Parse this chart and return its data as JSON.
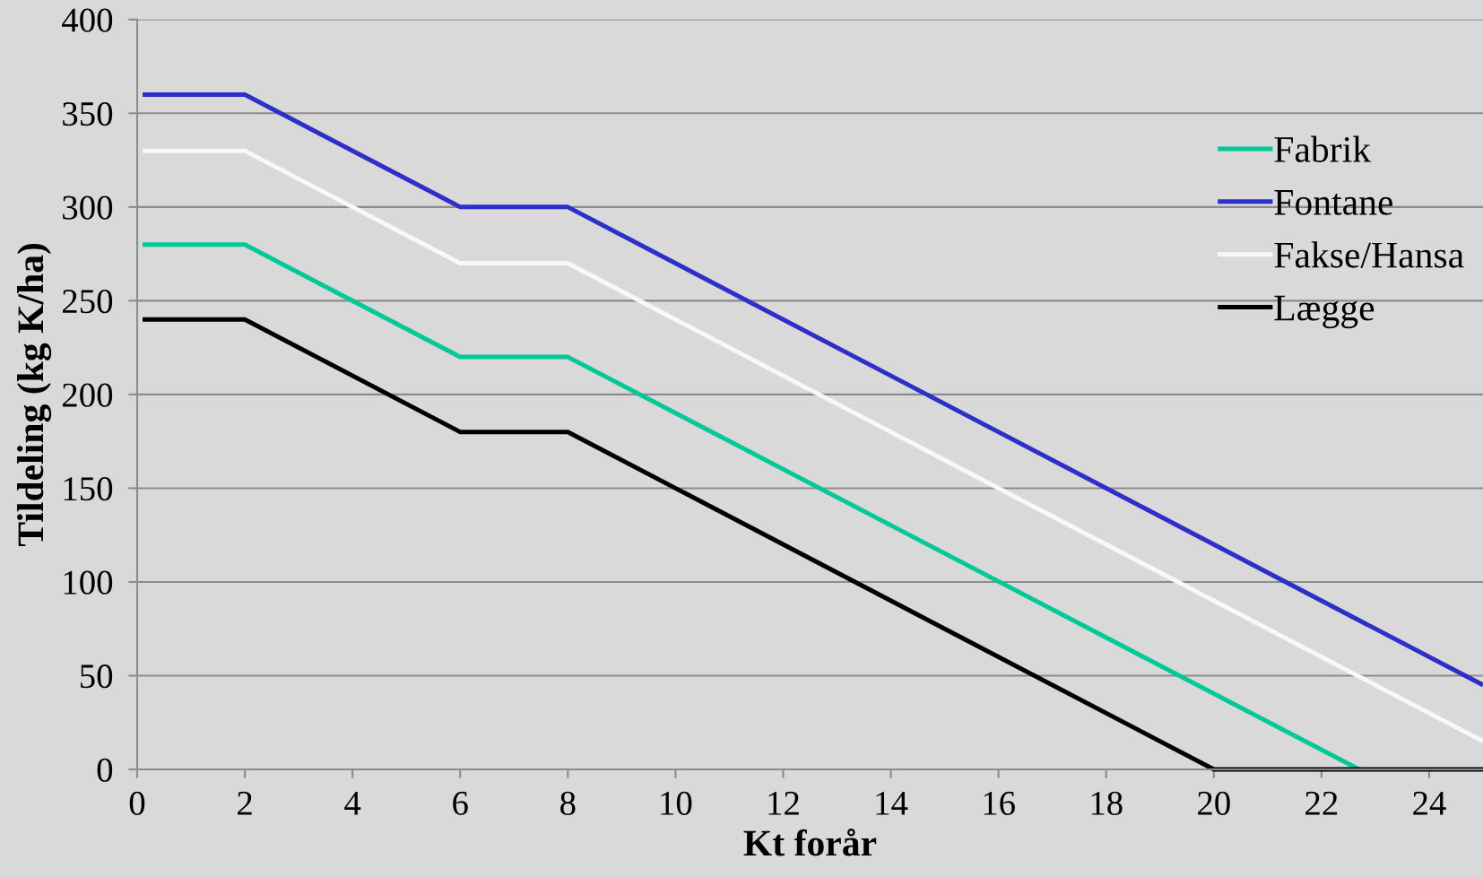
{
  "chart_data": {
    "type": "line",
    "xlabel": "Kt forår",
    "ylabel": "Tildeling (kg K/ha)",
    "xlim": [
      0,
      25
    ],
    "xticks": [
      0,
      2,
      4,
      6,
      8,
      10,
      12,
      14,
      16,
      18,
      20,
      22,
      24
    ],
    "ylim": [
      0,
      400
    ],
    "yticks": [
      0,
      50,
      100,
      150,
      200,
      250,
      300,
      350,
      400
    ],
    "grid": "y",
    "legend": "top right",
    "marker": "none",
    "line_style": "solid",
    "series": [
      {
        "name": "Fabrik",
        "color": "#00c896",
        "x": [
          0.1,
          2,
          6,
          8,
          22.7
        ],
        "values": [
          280,
          280,
          220,
          220,
          0
        ]
      },
      {
        "name": "Fontane",
        "color": "#2e2ec8",
        "x": [
          0.1,
          2,
          6,
          8,
          25
        ],
        "values": [
          360,
          360,
          300,
          300,
          45
        ]
      },
      {
        "name": "Fakse/Hansa",
        "color": "#f8f8f8",
        "x": [
          0.1,
          2,
          6,
          8,
          25
        ],
        "values": [
          330,
          330,
          270,
          270,
          15
        ]
      },
      {
        "name": "Lægge",
        "color": "#000000",
        "x": [
          0.1,
          2,
          6,
          8,
          20,
          25
        ],
        "values": [
          240,
          240,
          180,
          180,
          0,
          0
        ]
      }
    ]
  }
}
